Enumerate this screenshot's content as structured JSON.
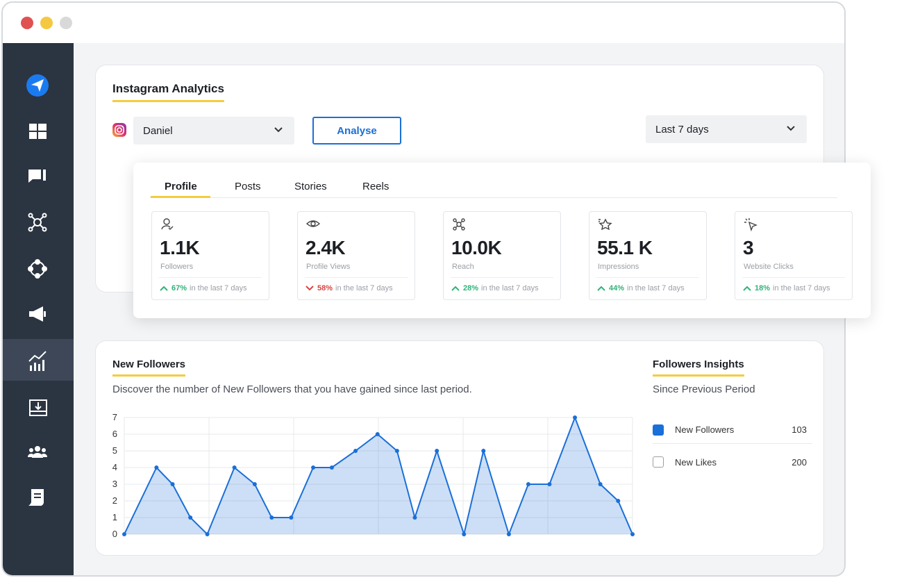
{
  "header": {
    "title": "Instagram Analytics"
  },
  "filters": {
    "account": "Daniel",
    "button": "Analyse",
    "period": "Last 7 days"
  },
  "tabs": [
    "Profile",
    "Posts",
    "Stories",
    "Reels"
  ],
  "active_tab": 0,
  "stats": [
    {
      "value": "1.1K",
      "label": "Followers",
      "change": "67%",
      "direction": "up",
      "note": "in the last 7 days"
    },
    {
      "value": "2.4K",
      "label": "Profile Views",
      "change": "58%",
      "direction": "down",
      "note": "in the last 7 days"
    },
    {
      "value": "10.0K",
      "label": "Reach",
      "change": "28%",
      "direction": "up",
      "note": "in the last 7 days"
    },
    {
      "value": "55.1 K",
      "label": "Impressions",
      "change": "44%",
      "direction": "up",
      "note": "in the last 7 days"
    },
    {
      "value": "3",
      "label": "Website Clicks",
      "change": "18%",
      "direction": "up",
      "note": "in the last 7 days"
    }
  ],
  "chart_data": {
    "type": "area",
    "title": "New Followers",
    "subtitle": "Discover the number of New Followers that you have gained since last period.",
    "x": [
      0,
      0.38,
      0.57,
      0.78,
      0.98,
      1.3,
      1.54,
      1.74,
      1.97,
      2.23,
      2.45,
      2.73,
      2.99,
      3.22,
      3.43,
      3.69,
      4.01,
      4.24,
      4.54,
      4.77,
      5.02,
      5.32,
      5.62,
      5.83,
      6
    ],
    "series": [
      {
        "color": "#1a6fd8",
        "values": [
          0,
          4,
          3,
          1,
          0,
          4,
          3,
          1,
          1,
          4,
          4,
          5,
          6,
          5,
          1,
          5,
          0,
          5,
          0,
          3,
          3,
          7,
          3,
          2,
          0
        ]
      }
    ],
    "xlim": [
      0,
      6
    ],
    "xticks": [
      0,
      1,
      2,
      3,
      4,
      5,
      6
    ],
    "ylim": [
      0,
      7
    ],
    "yticks": [
      0,
      1,
      2,
      3,
      4,
      5,
      6,
      7
    ],
    "grid": true
  },
  "insights": {
    "title": "Followers Insights",
    "subtitle": "Since Previous Period",
    "items": [
      {
        "name": "New Followers",
        "value": 103,
        "checked": true
      },
      {
        "name": "New Likes",
        "value": 200,
        "checked": false
      }
    ]
  }
}
